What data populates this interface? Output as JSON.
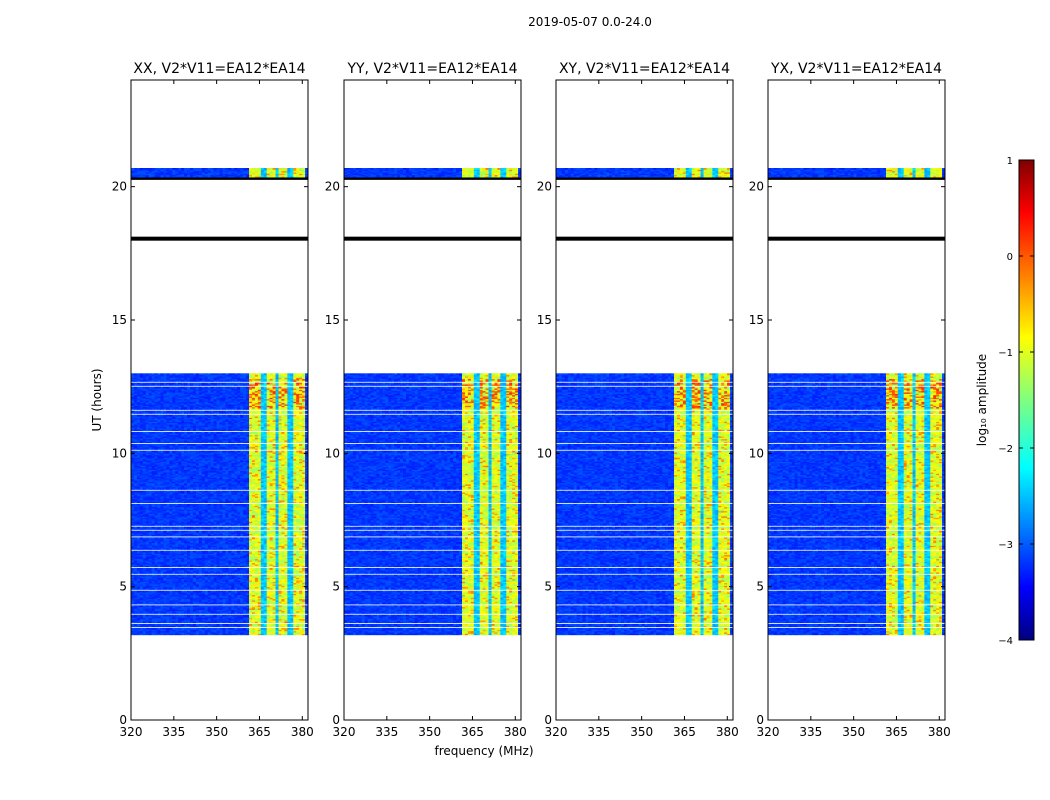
{
  "chart_data": {
    "type": "heatmap",
    "suptitle": "2019-05-07 0.0-24.0",
    "xlabel": "frequency (MHz)",
    "ylabel": "UT (hours)",
    "xlim": [
      320,
      382
    ],
    "ylim": [
      0,
      24
    ],
    "xticks": [
      320,
      335,
      350,
      365,
      380
    ],
    "yticks": [
      0,
      5,
      10,
      15,
      20
    ],
    "panels": [
      {
        "title": "XX, V2*V11=EA12*EA14"
      },
      {
        "title": "YY, V2*V11=EA12*EA14"
      },
      {
        "title": "XY, V2*V11=EA12*EA14"
      },
      {
        "title": "YX, V2*V11=EA12*EA14"
      }
    ],
    "data_time_ranges_hours": [
      [
        3.2,
        13.0
      ],
      [
        20.3,
        20.7
      ]
    ],
    "blank_time_rows_hours": [
      3.45,
      3.6,
      3.95,
      4.3,
      4.85,
      5.45,
      5.7,
      6.35,
      6.85,
      7.1,
      7.25,
      8.1,
      8.6,
      10.1,
      10.35,
      10.8,
      11.45,
      11.6,
      12.5,
      12.65
    ],
    "black_lines_hours": [
      18.05,
      20.3
    ],
    "rfi_band_mhz": [
      361.5,
      380.5
    ],
    "rfi_channel_gaps_mhz": [
      366.5,
      371.5,
      375.8
    ],
    "colorbar": {
      "label": "log₁₀ amplitude",
      "min": -4,
      "max": 1,
      "ticks": [
        "1",
        "0",
        "−1",
        "−2",
        "−3",
        "−4"
      ],
      "colormap": "jet"
    }
  }
}
